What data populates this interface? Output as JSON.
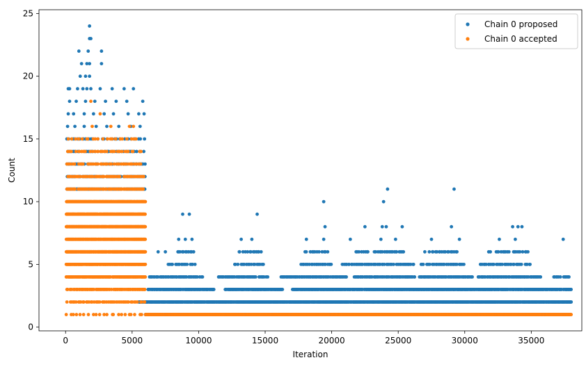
{
  "chart_data": {
    "type": "scatter",
    "title": "",
    "xlabel": "Iteration",
    "ylabel": "Count",
    "xlim": [
      -2000,
      38800
    ],
    "ylim": [
      -0.3,
      25.3
    ],
    "xticks": [
      0,
      5000,
      10000,
      15000,
      20000,
      25000,
      30000,
      35000
    ],
    "yticks": [
      0,
      5,
      10,
      15,
      20,
      25
    ],
    "grid": false,
    "legend_position": "top-right",
    "series": [
      {
        "name": "Chain 0 proposed",
        "color": "#1f77b4",
        "points": [
          [
            1800,
            24
          ],
          [
            1800,
            23
          ],
          [
            1900,
            23
          ],
          [
            1000,
            22
          ],
          [
            1700,
            22
          ],
          [
            2700,
            22
          ],
          [
            1200,
            21
          ],
          [
            1600,
            21
          ],
          [
            1800,
            21
          ],
          [
            2700,
            21
          ],
          [
            1100,
            20
          ],
          [
            1500,
            20
          ],
          [
            1800,
            20
          ],
          [
            200,
            19
          ],
          [
            300,
            19
          ],
          [
            900,
            19
          ],
          [
            1300,
            19
          ],
          [
            1600,
            19
          ],
          [
            1900,
            19
          ],
          [
            2600,
            19
          ],
          [
            3500,
            19
          ],
          [
            4400,
            19
          ],
          [
            5100,
            19
          ],
          [
            300,
            18
          ],
          [
            800,
            18
          ],
          [
            1500,
            18
          ],
          [
            2200,
            18
          ],
          [
            3000,
            18
          ],
          [
            3800,
            18
          ],
          [
            4600,
            18
          ],
          [
            5800,
            18
          ],
          [
            200,
            17
          ],
          [
            600,
            17
          ],
          [
            1400,
            17
          ],
          [
            2100,
            17
          ],
          [
            2900,
            17
          ],
          [
            3600,
            17
          ],
          [
            4700,
            17
          ],
          [
            5500,
            17
          ],
          [
            5900,
            17
          ],
          [
            150,
            16
          ],
          [
            700,
            16
          ],
          [
            1400,
            16
          ],
          [
            2300,
            16
          ],
          [
            3100,
            16
          ],
          [
            4000,
            16
          ],
          [
            4900,
            16
          ],
          [
            5600,
            16
          ],
          [
            8800,
            9
          ],
          [
            9300,
            9
          ],
          [
            14400,
            9
          ],
          [
            8500,
            7
          ],
          [
            9000,
            7
          ],
          [
            9500,
            7
          ],
          [
            13200,
            7
          ],
          [
            14000,
            7
          ],
          [
            18100,
            7
          ],
          [
            19400,
            7
          ],
          [
            21400,
            7
          ],
          [
            23700,
            7
          ],
          [
            24800,
            7
          ],
          [
            27500,
            7
          ],
          [
            29600,
            7
          ],
          [
            32600,
            7
          ],
          [
            33800,
            7
          ],
          [
            37400,
            7
          ],
          [
            19400,
            10
          ],
          [
            19500,
            8
          ],
          [
            23900,
            10
          ],
          [
            24200,
            11
          ],
          [
            22500,
            8
          ],
          [
            23800,
            8
          ],
          [
            24100,
            8
          ],
          [
            25300,
            8
          ],
          [
            29000,
            8
          ],
          [
            29200,
            11
          ],
          [
            33600,
            8
          ],
          [
            34000,
            8
          ],
          [
            34300,
            8
          ]
        ],
        "bands": [
          {
            "y": 15,
            "from": 100,
            "to": 6000,
            "step": 200
          },
          {
            "y": 14,
            "from": 100,
            "to": 6000,
            "step": 160
          },
          {
            "y": 13,
            "from": 100,
            "to": 6000,
            "step": 120
          },
          {
            "y": 12,
            "from": 100,
            "to": 6000,
            "step": 80
          },
          {
            "y": 11,
            "from": 100,
            "to": 6000,
            "step": 70
          },
          {
            "y": 6,
            "from": 6500,
            "to": 7500,
            "step": 500
          },
          {
            "y": 6,
            "from": 8400,
            "to": 9700,
            "step": 120
          },
          {
            "y": 6,
            "from": 13000,
            "to": 14700,
            "step": 120
          },
          {
            "y": 6,
            "from": 18000,
            "to": 19700,
            "step": 130
          },
          {
            "y": 6,
            "from": 21800,
            "to": 25500,
            "step": 120
          },
          {
            "y": 6,
            "from": 27000,
            "to": 29700,
            "step": 130
          },
          {
            "y": 6,
            "from": 31800,
            "to": 34800,
            "step": 130
          },
          {
            "y": 5,
            "from": 7700,
            "to": 9800,
            "step": 110
          },
          {
            "y": 5,
            "from": 12700,
            "to": 14900,
            "step": 110
          },
          {
            "y": 5,
            "from": 17700,
            "to": 20100,
            "step": 110
          },
          {
            "y": 5,
            "from": 20800,
            "to": 26200,
            "step": 110
          },
          {
            "y": 5,
            "from": 26700,
            "to": 30100,
            "step": 110
          },
          {
            "y": 5,
            "from": 31100,
            "to": 35000,
            "step": 110
          },
          {
            "y": 4,
            "from": 6300,
            "to": 10300,
            "step": 80
          },
          {
            "y": 4,
            "from": 11500,
            "to": 15200,
            "step": 80
          },
          {
            "y": 4,
            "from": 16200,
            "to": 21100,
            "step": 70
          },
          {
            "y": 4,
            "from": 21700,
            "to": 26300,
            "step": 70
          },
          {
            "y": 4,
            "from": 26600,
            "to": 30600,
            "step": 70
          },
          {
            "y": 4,
            "from": 31000,
            "to": 35700,
            "step": 70
          },
          {
            "y": 4,
            "from": 36700,
            "to": 37900,
            "step": 90
          },
          {
            "y": 3,
            "from": 6200,
            "to": 11200,
            "step": 40
          },
          {
            "y": 3,
            "from": 12000,
            "to": 16300,
            "step": 40
          },
          {
            "y": 3,
            "from": 17000,
            "to": 38000,
            "step": 40
          },
          {
            "y": 2,
            "from": 5500,
            "to": 38000,
            "step": 25
          },
          {
            "y": 1,
            "from": 6000,
            "to": 38000,
            "step": 50
          }
        ]
      },
      {
        "name": "Chain 0 accepted",
        "color": "#ff7f0e",
        "points": [
          [
            1900,
            18
          ],
          [
            2600,
            17
          ],
          [
            3400,
            16
          ],
          [
            2000,
            16
          ],
          [
            4800,
            16
          ],
          [
            5100,
            16
          ]
        ],
        "bands": [
          {
            "y": 15,
            "from": 200,
            "to": 5600,
            "step": 260
          },
          {
            "y": 14,
            "from": 100,
            "to": 5700,
            "step": 180
          },
          {
            "y": 13,
            "from": 100,
            "to": 5800,
            "step": 140
          },
          {
            "y": 12,
            "from": 100,
            "to": 5900,
            "step": 100
          },
          {
            "y": 11,
            "from": 100,
            "to": 5900,
            "step": 80
          },
          {
            "y": 10,
            "from": 50,
            "to": 6000,
            "step": 25
          },
          {
            "y": 9,
            "from": 50,
            "to": 6000,
            "step": 25
          },
          {
            "y": 8,
            "from": 50,
            "to": 6000,
            "step": 25
          },
          {
            "y": 7,
            "from": 50,
            "to": 6000,
            "step": 25
          },
          {
            "y": 6,
            "from": 50,
            "to": 6000,
            "step": 25
          },
          {
            "y": 5,
            "from": 50,
            "to": 6000,
            "step": 25
          },
          {
            "y": 4,
            "from": 50,
            "to": 6000,
            "step": 30
          },
          {
            "y": 3,
            "from": 100,
            "to": 6000,
            "step": 70
          },
          {
            "y": 2,
            "from": 100,
            "to": 6000,
            "step": 120
          },
          {
            "y": 1,
            "from": 50,
            "to": 6000,
            "step": 260
          },
          {
            "y": 1,
            "from": 6000,
            "to": 38000,
            "step": 25
          }
        ]
      }
    ]
  }
}
